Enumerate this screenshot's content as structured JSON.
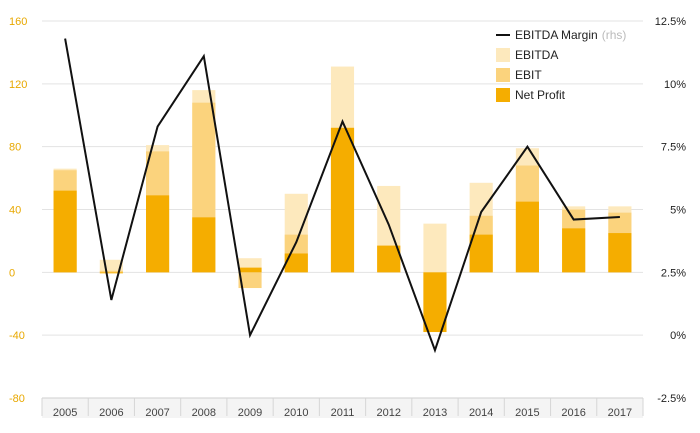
{
  "chart_data": {
    "type": "bar",
    "categories": [
      "2005",
      "2006",
      "2007",
      "2008",
      "2009",
      "2010",
      "2011",
      "2012",
      "2013",
      "2014",
      "2015",
      "2016",
      "2017"
    ],
    "series": [
      {
        "name": "EBITDA",
        "kind": "bar-overlay",
        "color": "#fde9bd",
        "values": [
          66,
          8,
          81,
          116,
          9,
          50,
          131,
          55,
          31,
          57,
          79,
          42,
          42
        ]
      },
      {
        "name": "EBIT",
        "kind": "bar-overlay",
        "color": "#fbd37d",
        "values": [
          65,
          1,
          77,
          108,
          -10,
          24,
          92,
          17,
          -38,
          36,
          68,
          40,
          38
        ]
      },
      {
        "name": "Net Profit",
        "kind": "bar-overlay",
        "color": "#f5ad00",
        "values": [
          52,
          0,
          49,
          35,
          3,
          12,
          92,
          17,
          -38,
          24,
          45,
          28,
          25
        ]
      },
      {
        "name": "EBITDA Margin",
        "name_suffix": "(rhs)",
        "kind": "line",
        "axis": "right",
        "color": "#111111",
        "values": [
          11.8,
          1.4,
          8.3,
          11.1,
          0.0,
          3.7,
          8.5,
          4.4,
          -0.6,
          4.9,
          7.5,
          4.6,
          4.7
        ]
      }
    ],
    "ylim": [
      -80,
      160
    ],
    "yticks": [
      "160",
      "120",
      "80",
      "40",
      "0",
      "-40",
      "-80"
    ],
    "y2lim": [
      -2.5,
      12.5
    ],
    "y2ticks": [
      "12.5%",
      "10%",
      "7.5%",
      "5%",
      "2.5%",
      "0%",
      "-2.5%"
    ],
    "grid": true,
    "legend_position": "top-right",
    "title": "",
    "xlabel": "",
    "ylabel": ""
  }
}
